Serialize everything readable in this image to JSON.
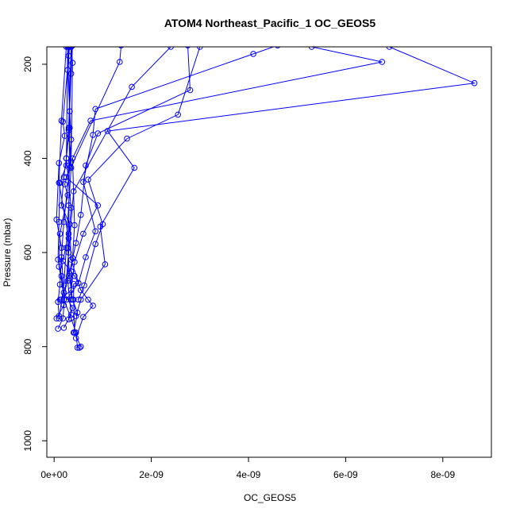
{
  "chart_data": {
    "type": "scatter",
    "title": "ATOM4 Northeast_Pacific_1 OC_GEOS5",
    "xlabel": "OC_GEOS5",
    "ylabel": "Pressure (mbar)",
    "xlim": [
      -1.5e-10,
      9e-09
    ],
    "ylim": [
      1035,
      163
    ],
    "y_reversed": true,
    "x_ticks": [
      0,
      2e-09,
      4e-09,
      6e-09,
      8e-09
    ],
    "x_tick_labels": [
      "0e+00",
      "2e-09",
      "4e-09",
      "6e-09",
      "8e-09"
    ],
    "y_ticks": [
      200,
      400,
      600,
      800,
      1000
    ],
    "y_tick_labels": [
      "200",
      "400",
      "600",
      "800",
      "1000"
    ],
    "grid": false,
    "legend": "none",
    "marker": "open-circle",
    "color": "#0000ff",
    "series": [
      {
        "points": [
          [
            1e-10,
            740
          ],
          [
            2e-10,
            670
          ],
          [
            2.5e-10,
            590
          ],
          [
            3e-10,
            500
          ],
          [
            3.5e-10,
            420
          ],
          [
            3e-10,
            340
          ],
          [
            3.5e-10,
            220
          ],
          [
            3.8e-10,
            160
          ]
        ]
      },
      {
        "points": [
          [
            1.2e-10,
            700
          ],
          [
            3.5e-10,
            680
          ],
          [
            4.2e-10,
            620
          ],
          [
            6e-10,
            560
          ],
          [
            9e-10,
            500
          ],
          [
            2.5e-10,
            440
          ],
          [
            1.35e-09,
            195
          ],
          [
            1.38e-09,
            160
          ]
        ]
      },
      {
        "points": [
          [
            2.5e-10,
            700
          ],
          [
            5e-10,
            665
          ],
          [
            6.5e-10,
            610
          ],
          [
            8.5e-10,
            555
          ],
          [
            6e-10,
            450
          ],
          [
            8e-10,
            350
          ],
          [
            8.5e-10,
            295
          ],
          [
            4.1e-09,
            178
          ],
          [
            4.6e-09,
            160
          ]
        ]
      },
      {
        "points": [
          [
            1.5e-10,
            700
          ],
          [
            3e-10,
            650
          ],
          [
            4.5e-10,
            580
          ],
          [
            5.5e-10,
            520
          ],
          [
            6.5e-10,
            415
          ],
          [
            9e-10,
            347
          ],
          [
            2.8e-09,
            255
          ],
          [
            2.75e-09,
            160
          ]
        ]
      },
      {
        "points": [
          [
            3.5e-10,
            700
          ],
          [
            3.5e-10,
            640
          ],
          [
            3.8e-10,
            612
          ],
          [
            4.2e-10,
            542
          ],
          [
            3.8e-10,
            400
          ],
          [
            7.5e-10,
            320
          ],
          [
            6.75e-09,
            195
          ],
          [
            5.3e-09,
            163
          ]
        ]
      },
      {
        "points": [
          [
            5e-10,
            700
          ],
          [
            6.2e-10,
            670
          ],
          [
            8.5e-10,
            582
          ],
          [
            1e-09,
            540
          ],
          [
            7e-10,
            445
          ],
          [
            1.5e-09,
            358
          ],
          [
            2.55e-09,
            307
          ],
          [
            3e-09,
            163
          ]
        ]
      },
      {
        "points": [
          [
            4.5e-10,
            735
          ],
          [
            5.5e-10,
            700
          ],
          [
            1.05e-09,
            625
          ],
          [
            9.5e-10,
            545
          ],
          [
            1.65e-09,
            420
          ],
          [
            1.1e-09,
            342
          ],
          [
            8.65e-09,
            240
          ],
          [
            6.9e-09,
            163
          ]
        ]
      },
      {
        "points": [
          [
            8e-11,
            762
          ],
          [
            1.8e-10,
            740
          ],
          [
            3e-10,
            600
          ],
          [
            4e-10,
            470
          ],
          [
            1.6e-09,
            248
          ],
          [
            2.4e-09,
            163
          ]
        ]
      },
      {
        "points": [
          [
            5e-11,
            740
          ],
          [
            2e-10,
            712
          ],
          [
            1.5e-10,
            590
          ],
          [
            5e-11,
            530
          ],
          [
            1e-10,
            410
          ],
          [
            2.2e-10,
            352
          ],
          [
            1.8e-10,
            322
          ],
          [
            3e-10,
            182
          ],
          [
            3.2e-10,
            163
          ]
        ]
      },
      {
        "points": [
          [
            3e-10,
            742
          ],
          [
            3.8e-10,
            718
          ],
          [
            2e-10,
            685
          ],
          [
            1e-10,
            630
          ],
          [
            1.2e-10,
            560
          ],
          [
            2.8e-10,
            478
          ],
          [
            2.2e-10,
            455
          ],
          [
            3.5e-10,
            407
          ],
          [
            3.8e-10,
            197
          ],
          [
            3.5e-10,
            163
          ]
        ]
      },
      {
        "points": [
          [
            1e-10,
            735
          ],
          [
            8e-11,
            705
          ],
          [
            1.2e-10,
            668
          ],
          [
            1.5e-10,
            610
          ],
          [
            2e-10,
            535
          ],
          [
            3.2e-10,
            420
          ],
          [
            3.5e-10,
            360
          ],
          [
            2.8e-10,
            212
          ],
          [
            3e-10,
            163
          ]
        ]
      },
      {
        "points": [
          [
            2e-10,
            760
          ],
          [
            3.5e-10,
            732
          ],
          [
            2.8e-10,
            660
          ],
          [
            3e-10,
            570
          ],
          [
            1e-10,
            452
          ],
          [
            1.5e-10,
            320
          ],
          [
            2.5e-10,
            163
          ]
        ]
      },
      {
        "points": [
          [
            4e-10,
            770
          ],
          [
            4.8e-10,
            728
          ],
          [
            3.8e-10,
            700
          ],
          [
            3.2e-10,
            655
          ],
          [
            2.8e-10,
            590
          ],
          [
            3.5e-10,
            505
          ],
          [
            2.5e-10,
            400
          ],
          [
            3.2e-10,
            335
          ],
          [
            3e-10,
            163
          ]
        ]
      },
      {
        "points": [
          [
            4.5e-10,
            782
          ],
          [
            6e-10,
            737
          ],
          [
            8e-10,
            713
          ],
          [
            7e-10,
            700
          ],
          [
            5.5e-10,
            680
          ],
          [
            3.5e-10,
            615
          ],
          [
            3.2e-10,
            540
          ],
          [
            1.5e-10,
            500
          ],
          [
            2e-10,
            440
          ],
          [
            2.5e-10,
            400
          ],
          [
            3e-10,
            335
          ],
          [
            3.5e-10,
            163
          ]
        ]
      },
      {
        "points": [
          [
            5.2e-10,
            802
          ],
          [
            4.8e-10,
            802
          ],
          [
            4.5e-10,
            770
          ],
          [
            3.5e-10,
            740
          ],
          [
            2e-10,
            700
          ],
          [
            1.5e-10,
            650
          ],
          [
            8e-11,
            615
          ],
          [
            1e-10,
            535
          ],
          [
            1.2e-10,
            452
          ],
          [
            2.5e-10,
            415
          ],
          [
            2.8e-10,
            163
          ]
        ]
      },
      {
        "points": [
          [
            5.5e-10,
            800
          ],
          [
            4.2e-10,
            770
          ],
          [
            4e-10,
            700
          ],
          [
            4e-10,
            667
          ],
          [
            5e-10,
            665
          ],
          [
            4.2e-10,
            650
          ],
          [
            1.8e-10,
            618
          ],
          [
            3e-10,
            560
          ],
          [
            3.2e-10,
            300
          ],
          [
            3.5e-10,
            163
          ]
        ]
      }
    ]
  }
}
